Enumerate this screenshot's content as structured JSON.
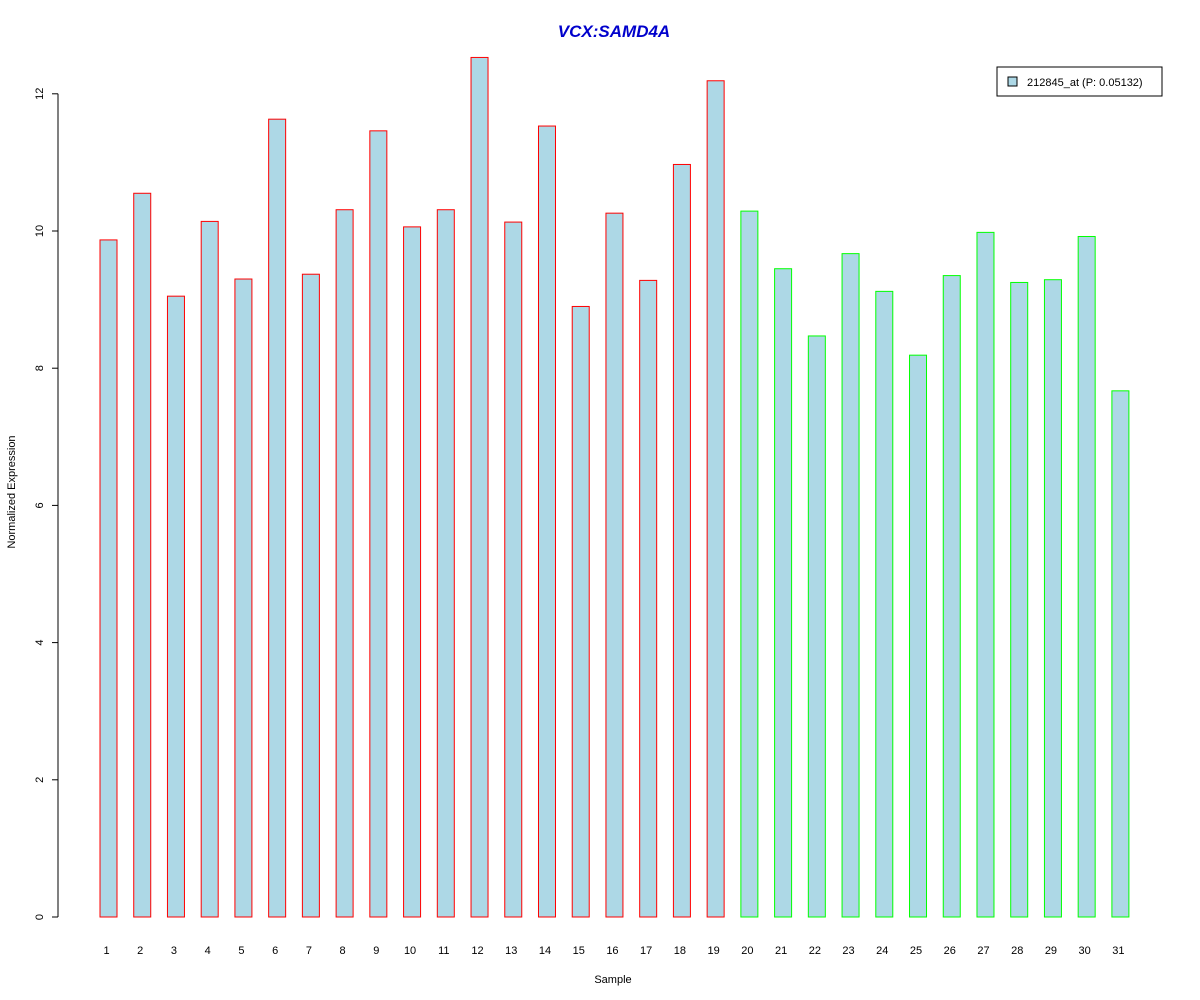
{
  "chart_data": {
    "type": "bar",
    "title": "VCX:SAMD4A",
    "xlabel": "Sample",
    "ylabel": "Normalized Expression",
    "ylim": [
      0,
      12.5
    ],
    "yticks": [
      0,
      2,
      4,
      6,
      8,
      10,
      12
    ],
    "categories": [
      "1",
      "2",
      "3",
      "4",
      "5",
      "6",
      "7",
      "8",
      "9",
      "10",
      "11",
      "12",
      "13",
      "14",
      "15",
      "16",
      "17",
      "18",
      "19",
      "20",
      "21",
      "22",
      "23",
      "24",
      "25",
      "26",
      "27",
      "28",
      "29",
      "30",
      "31"
    ],
    "series": [
      {
        "name": "212845_at (P: 0.05132)",
        "values": [
          9.87,
          10.55,
          9.05,
          10.14,
          9.3,
          11.63,
          9.37,
          10.31,
          11.46,
          10.06,
          10.31,
          12.53,
          10.13,
          11.53,
          8.9,
          10.26,
          9.28,
          10.97,
          12.19,
          10.29,
          9.45,
          8.47,
          9.67,
          9.12,
          8.19,
          9.35,
          9.98,
          9.25,
          9.29,
          9.92,
          7.67
        ],
        "fill_color": "#add8e6"
      }
    ],
    "groups": [
      {
        "samples": "1-19",
        "border_color": "#ff0000"
      },
      {
        "samples": "20-31",
        "border_color": "#00ff00"
      }
    ],
    "legend_position": "top-right",
    "grid": false,
    "colors": {
      "title": "#0000cc",
      "bar_fill": "#add8e6",
      "group1_border": "#ff0000",
      "group2_border": "#00ff00",
      "axis": "#000000"
    }
  }
}
